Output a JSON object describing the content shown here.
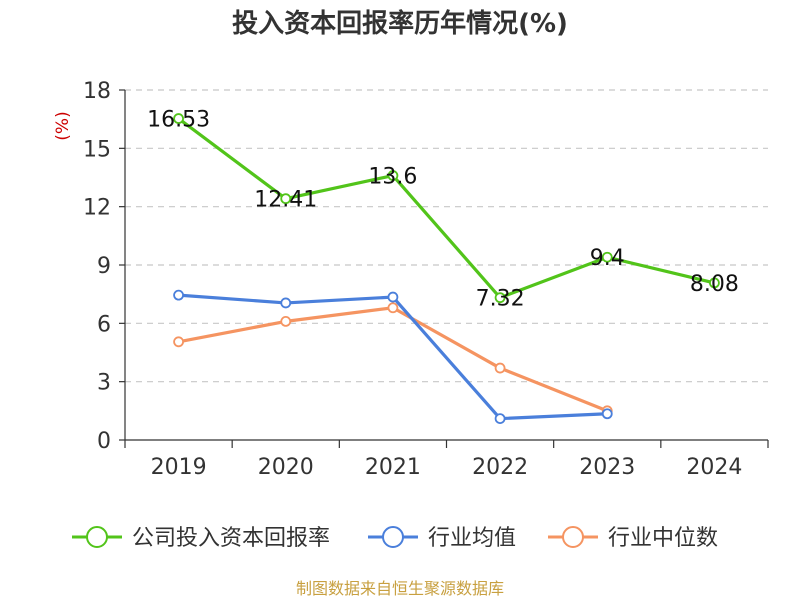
{
  "chart_data": {
    "type": "line",
    "title": "投入资本回报率历年情况(%)",
    "unit_label": "(%)",
    "categories": [
      "2019",
      "2020",
      "2021",
      "2022",
      "2023",
      "2024"
    ],
    "y_ticks": [
      "0",
      "3",
      "6",
      "9",
      "12",
      "15",
      "18"
    ],
    "ylim": [
      0,
      18
    ],
    "grid": true,
    "legend_position": "bottom",
    "series": [
      {
        "name": "公司投入资本回报率",
        "color": "#52c41a",
        "values": [
          16.53,
          12.41,
          13.6,
          7.32,
          9.4,
          8.08
        ],
        "labels": [
          "16.53",
          "12.41",
          "13.6",
          "7.32",
          "9.4",
          "8.08"
        ]
      },
      {
        "name": "行业均值",
        "color": "#4a7fdb",
        "values": [
          7.45,
          7.05,
          7.35,
          1.1,
          1.35,
          null
        ]
      },
      {
        "name": "行业中位数",
        "color": "#f59461",
        "values": [
          5.05,
          6.1,
          6.8,
          3.7,
          1.5,
          null
        ]
      }
    ],
    "source": "制图数据来自恒生聚源数据库"
  }
}
